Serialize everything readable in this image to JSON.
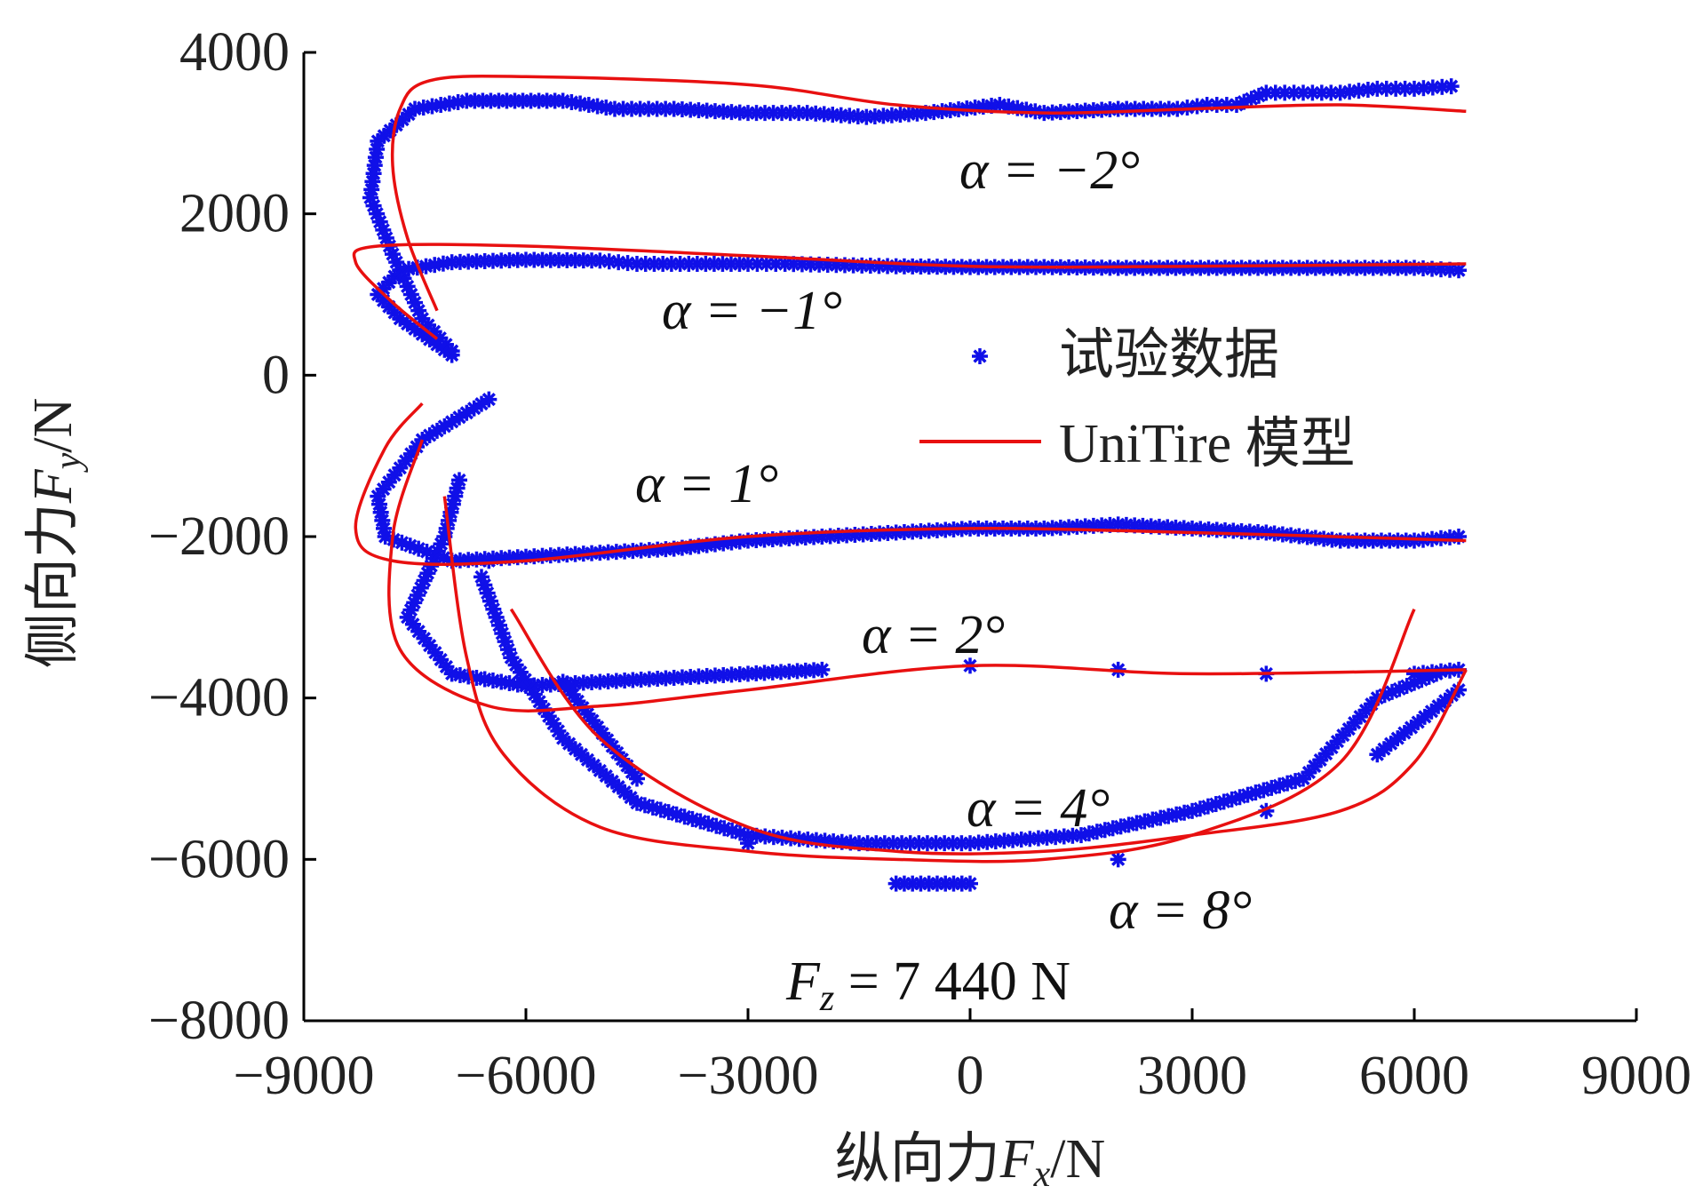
{
  "chart_data": {
    "type": "scatter",
    "title": "",
    "xlabel": {
      "prefix": "纵向力",
      "var": "F",
      "sub": "x",
      "unit": "/N"
    },
    "ylabel": {
      "prefix": "侧向力",
      "var": "F",
      "sub": "y",
      "unit": "/N"
    },
    "xlim": [
      -9000,
      9000
    ],
    "ylim": [
      -8000,
      4000
    ],
    "xticks": [
      "−9000",
      "−6000",
      "−3000",
      "0",
      "3000",
      "6000",
      "9000"
    ],
    "xtick_values": [
      -9000,
      -6000,
      -3000,
      0,
      3000,
      6000,
      9000
    ],
    "yticks": [
      "4000",
      "2000",
      "0",
      "−2000",
      "−4000",
      "−6000",
      "−8000"
    ],
    "ytick_values": [
      4000,
      2000,
      0,
      -2000,
      -4000,
      -6000,
      -8000
    ],
    "grid": false,
    "legend": {
      "placement": "right-center",
      "entries": [
        {
          "label": "试验数据",
          "marker": "asterisk",
          "color": "#1010e8"
        },
        {
          "label": "UniTire 模型",
          "marker": "line",
          "color": "#e81010"
        }
      ]
    },
    "annotations": {
      "a_m2": "α = −2°",
      "a_m1": "α = −1°",
      "a_1": "α = 1°",
      "a_2": "α = 2°",
      "a_4": "α = 4°",
      "a_8": "α = 8°",
      "fz": {
        "var": "F",
        "sub": "z",
        "rest": " = 7 440 N"
      }
    },
    "series": [
      {
        "slip_angle": "α = −2°",
        "test": [
          [
            -7000,
            300
          ],
          [
            -7400,
            700
          ],
          [
            -7800,
            1500
          ],
          [
            -8100,
            2200
          ],
          [
            -8000,
            2900
          ],
          [
            -7500,
            3300
          ],
          [
            -6800,
            3400
          ],
          [
            -5500,
            3400
          ],
          [
            -4800,
            3300
          ],
          [
            -4000,
            3300
          ],
          [
            -3000,
            3250
          ],
          [
            -2200,
            3250
          ],
          [
            -1400,
            3200
          ],
          [
            -600,
            3250
          ],
          [
            400,
            3350
          ],
          [
            1000,
            3250
          ],
          [
            2000,
            3300
          ],
          [
            2800,
            3300
          ],
          [
            3200,
            3350
          ],
          [
            3600,
            3350
          ],
          [
            4000,
            3500
          ],
          [
            4500,
            3500
          ],
          [
            5000,
            3500
          ],
          [
            5500,
            3550
          ],
          [
            6000,
            3550
          ],
          [
            6500,
            3580
          ]
        ],
        "model": [
          [
            -7200,
            800
          ],
          [
            -7600,
            1700
          ],
          [
            -7800,
            2600
          ],
          [
            -7700,
            3300
          ],
          [
            -7300,
            3650
          ],
          [
            -6000,
            3700
          ],
          [
            -3000,
            3600
          ],
          [
            -1000,
            3350
          ],
          [
            1000,
            3250
          ],
          [
            3000,
            3300
          ],
          [
            5000,
            3350
          ],
          [
            6700,
            3270
          ]
        ]
      },
      {
        "slip_angle": "α = −1°",
        "test": [
          [
            -7000,
            250
          ],
          [
            -7700,
            700
          ],
          [
            -8000,
            1000
          ],
          [
            -7700,
            1300
          ],
          [
            -7000,
            1400
          ],
          [
            -6000,
            1430
          ],
          [
            -5000,
            1420
          ],
          [
            -4500,
            1380
          ],
          [
            -3800,
            1380
          ],
          [
            -3000,
            1380
          ],
          [
            -2500,
            1380
          ],
          [
            -1000,
            1350
          ],
          [
            0,
            1340
          ],
          [
            1000,
            1340
          ],
          [
            2000,
            1330
          ],
          [
            3000,
            1330
          ],
          [
            4000,
            1330
          ],
          [
            5000,
            1330
          ],
          [
            6000,
            1330
          ],
          [
            6600,
            1300
          ]
        ],
        "model": [
          [
            -7200,
            450
          ],
          [
            -7800,
            900
          ],
          [
            -8300,
            1400
          ],
          [
            -8000,
            1600
          ],
          [
            -6000,
            1600
          ],
          [
            -3000,
            1480
          ],
          [
            0,
            1350
          ],
          [
            3000,
            1350
          ],
          [
            6700,
            1380
          ]
        ]
      },
      {
        "slip_angle": "α = 1°",
        "test": [
          [
            -6500,
            -300
          ],
          [
            -7400,
            -800
          ],
          [
            -8000,
            -1500
          ],
          [
            -7900,
            -2000
          ],
          [
            -7000,
            -2300
          ],
          [
            -6000,
            -2250
          ],
          [
            -5000,
            -2200
          ],
          [
            -4000,
            -2150
          ],
          [
            -3000,
            -2050
          ],
          [
            -2000,
            -2000
          ],
          [
            -1000,
            -1950
          ],
          [
            0,
            -1900
          ],
          [
            1000,
            -1900
          ],
          [
            2000,
            -1850
          ],
          [
            3000,
            -1900
          ],
          [
            4000,
            -1950
          ],
          [
            5000,
            -2050
          ],
          [
            6000,
            -2050
          ],
          [
            6600,
            -2000
          ]
        ],
        "model": [
          [
            -7400,
            -350
          ],
          [
            -7900,
            -900
          ],
          [
            -8300,
            -1900
          ],
          [
            -7800,
            -2300
          ],
          [
            -6000,
            -2300
          ],
          [
            -3000,
            -2000
          ],
          [
            0,
            -1900
          ],
          [
            3000,
            -1950
          ],
          [
            6700,
            -2050
          ]
        ]
      },
      {
        "slip_angle": "α = 2°",
        "test": [
          [
            -6900,
            -1300
          ],
          [
            -7100,
            -2000
          ],
          [
            -7600,
            -3000
          ],
          [
            -7000,
            -3700
          ],
          [
            -6000,
            -3850
          ],
          [
            -5000,
            -3800
          ],
          [
            -4000,
            -3750
          ],
          [
            -3000,
            -3700
          ],
          [
            -2000,
            -3650
          ],
          [
            0,
            -3600
          ],
          [
            2000,
            -3650
          ],
          [
            4000,
            -3700
          ],
          [
            6000,
            -3700
          ],
          [
            6600,
            -3650
          ]
        ],
        "model": [
          [
            -7400,
            -800
          ],
          [
            -7800,
            -2000
          ],
          [
            -7700,
            -3400
          ],
          [
            -6500,
            -4100
          ],
          [
            -5000,
            -4100
          ],
          [
            -3000,
            -3900
          ],
          [
            0,
            -3600
          ],
          [
            3000,
            -3700
          ],
          [
            6700,
            -3650
          ]
        ]
      },
      {
        "slip_angle": "α = 4°",
        "test": [
          [
            -6600,
            -2500
          ],
          [
            -6200,
            -3500
          ],
          [
            -5500,
            -4500
          ],
          [
            -4500,
            -5300
          ],
          [
            -3000,
            -5700
          ],
          [
            -1500,
            -5800
          ],
          [
            0,
            -5800
          ],
          [
            1500,
            -5700
          ],
          [
            3000,
            -5400
          ],
          [
            4500,
            -5000
          ],
          [
            5500,
            -4000
          ],
          [
            6300,
            -3700
          ]
        ],
        "model": [
          [
            -7100,
            -1500
          ],
          [
            -6800,
            -3500
          ],
          [
            -6300,
            -4700
          ],
          [
            -5000,
            -5600
          ],
          [
            -3000,
            -5900
          ],
          [
            -1000,
            -6000
          ],
          [
            1000,
            -6000
          ],
          [
            3000,
            -5700
          ],
          [
            5000,
            -4800
          ],
          [
            6000,
            -2900
          ]
        ]
      },
      {
        "slip_angle": "α = 8°",
        "test": [
          [
            -6500,
            -2300
          ],
          [
            -5500,
            -3800
          ],
          [
            -4500,
            -5000
          ],
          [
            -3000,
            -5800
          ],
          [
            -1000,
            -6300
          ],
          [
            0,
            -6300
          ],
          [
            2000,
            -6000
          ],
          [
            4000,
            -5400
          ],
          [
            5500,
            -4700
          ],
          [
            6600,
            -3900
          ]
        ],
        "model": [
          [
            -6200,
            -2900
          ],
          [
            -5000,
            -4500
          ],
          [
            -3000,
            -5600
          ],
          [
            -1000,
            -5900
          ],
          [
            1000,
            -5900
          ],
          [
            3000,
            -5700
          ],
          [
            5000,
            -5400
          ],
          [
            6000,
            -4800
          ],
          [
            6700,
            -3650
          ]
        ]
      }
    ]
  }
}
